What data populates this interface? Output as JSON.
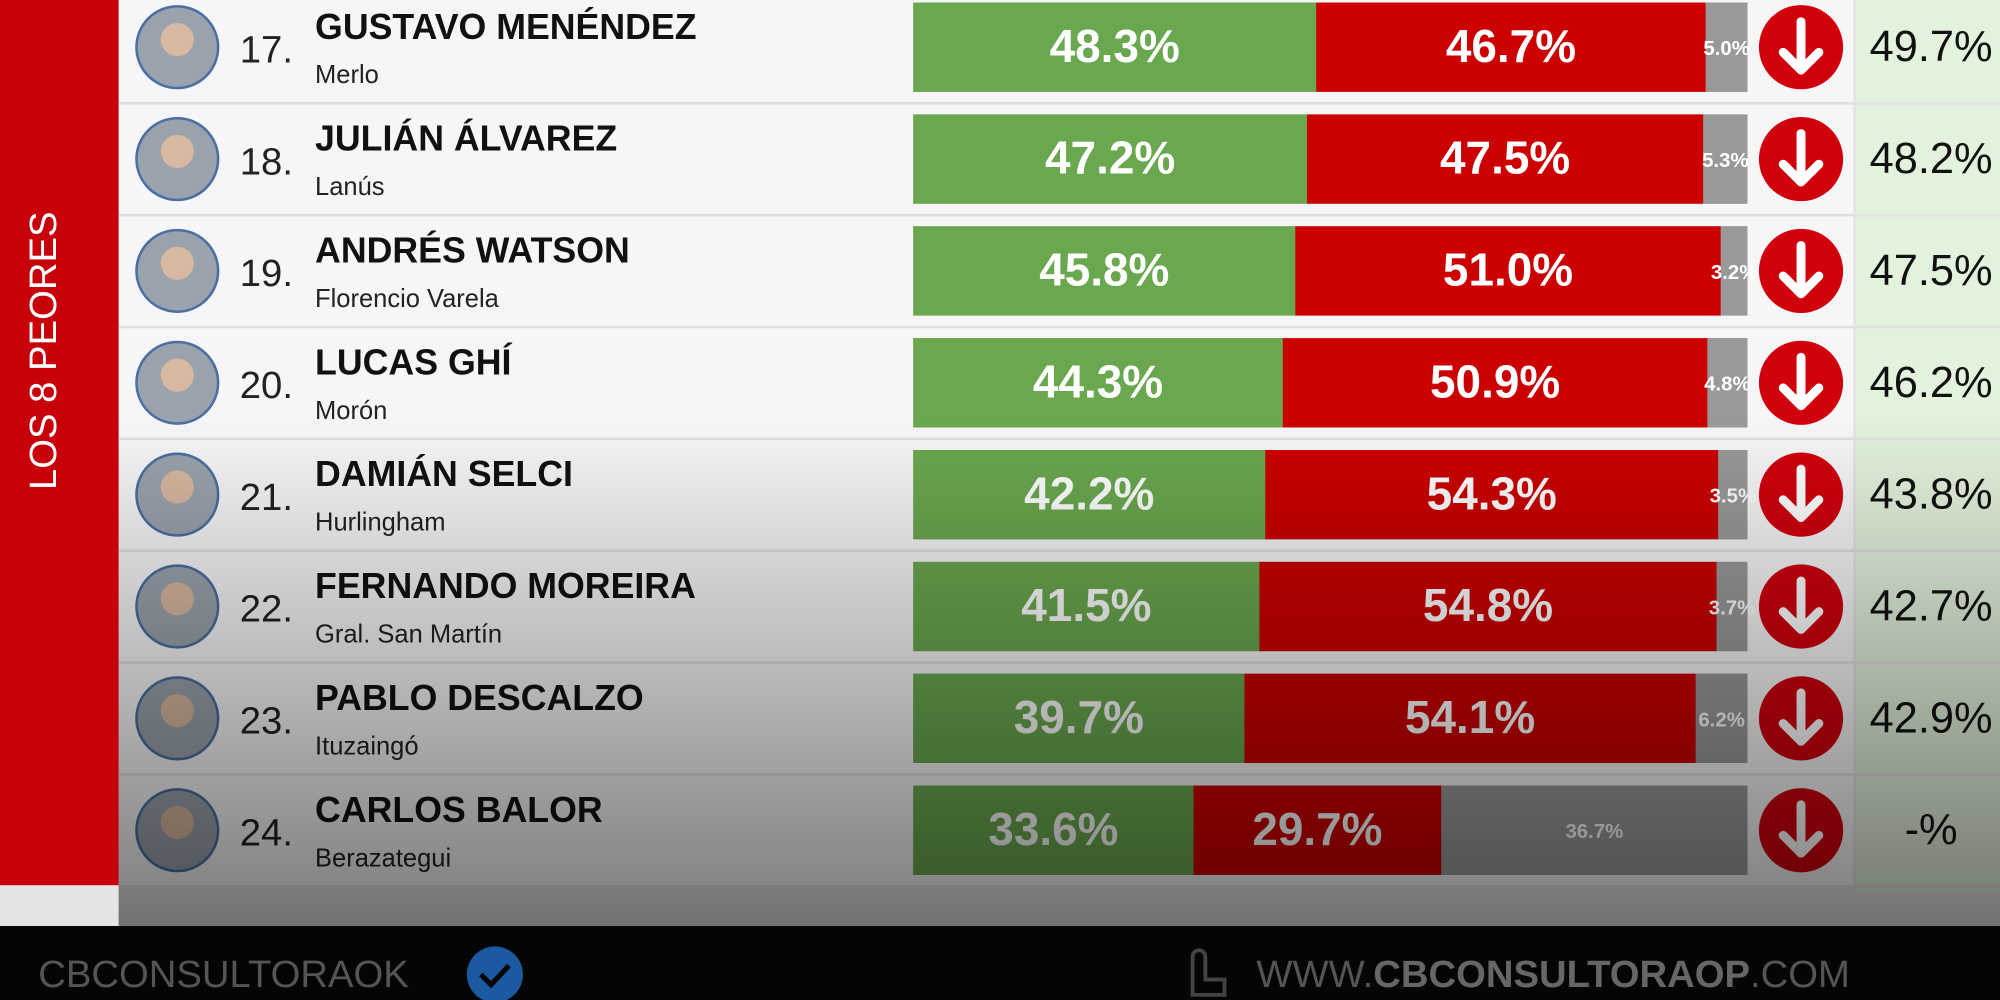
{
  "side_label": "LOS 8 PEORES",
  "rows": [
    {
      "rank": "17.",
      "name": "GUSTAVO MENÉNDEZ",
      "city": "Merlo",
      "approve": {
        "value": 48.3,
        "label": "48.3%"
      },
      "disapprove": {
        "value": 46.7,
        "label": "46.7%"
      },
      "unsure": {
        "value": 5.0,
        "label": "5.0%"
      },
      "previous": "49.7%"
    },
    {
      "rank": "18.",
      "name": "JULIÁN ÁLVAREZ",
      "city": "Lanús",
      "approve": {
        "value": 47.2,
        "label": "47.2%"
      },
      "disapprove": {
        "value": 47.5,
        "label": "47.5%"
      },
      "unsure": {
        "value": 5.3,
        "label": "5.3%"
      },
      "previous": "48.2%"
    },
    {
      "rank": "19.",
      "name": "ANDRÉS WATSON",
      "city": "Florencio Varela",
      "approve": {
        "value": 45.8,
        "label": "45.8%"
      },
      "disapprove": {
        "value": 51.0,
        "label": "51.0%"
      },
      "unsure": {
        "value": 3.2,
        "label": "3.2%"
      },
      "previous": "47.5%"
    },
    {
      "rank": "20.",
      "name": "LUCAS GHÍ",
      "city": "Morón",
      "approve": {
        "value": 44.3,
        "label": "44.3%"
      },
      "disapprove": {
        "value": 50.9,
        "label": "50.9%"
      },
      "unsure": {
        "value": 4.8,
        "label": "4.8%"
      },
      "previous": "46.2%"
    },
    {
      "rank": "21.",
      "name": "DAMIÁN SELCI",
      "city": "Hurlingham",
      "approve": {
        "value": 42.2,
        "label": "42.2%"
      },
      "disapprove": {
        "value": 54.3,
        "label": "54.3%"
      },
      "unsure": {
        "value": 3.5,
        "label": "3.5%"
      },
      "previous": "43.8%"
    },
    {
      "rank": "22.",
      "name": "FERNANDO MOREIRA",
      "city": "Gral. San Martín",
      "approve": {
        "value": 41.5,
        "label": "41.5%"
      },
      "disapprove": {
        "value": 54.8,
        "label": "54.8%"
      },
      "unsure": {
        "value": 3.7,
        "label": "3.7%"
      },
      "previous": "42.7%"
    },
    {
      "rank": "23.",
      "name": "PABLO DESCALZO",
      "city": "Ituzaingó",
      "approve": {
        "value": 39.7,
        "label": "39.7%"
      },
      "disapprove": {
        "value": 54.1,
        "label": "54.1%"
      },
      "unsure": {
        "value": 6.2,
        "label": "6.2%"
      },
      "previous": "42.9%"
    },
    {
      "rank": "24.",
      "name": "CARLOS BALOR",
      "city": "Berazategui",
      "approve": {
        "value": 33.6,
        "label": "33.6%"
      },
      "disapprove": {
        "value": 29.7,
        "label": "29.7%"
      },
      "unsure": {
        "value": 36.7,
        "label": "36.7%"
      },
      "previous": "-%"
    }
  ],
  "footer": {
    "account": "CBCONSULTORAOK",
    "url_prefix": "WWW.",
    "url_main": "CBCONSULTORAOP",
    "url_suffix": ".COM"
  }
}
